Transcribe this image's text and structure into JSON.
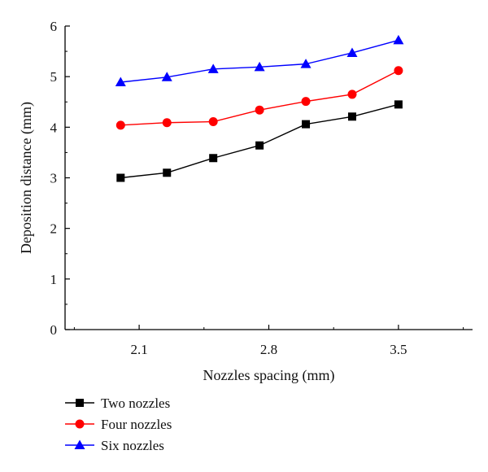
{
  "chart_data": {
    "type": "line",
    "xlabel": "Nozzles spacing (mm)",
    "ylabel": "Deposition distance (mm)",
    "xlim": [
      1.7,
      3.9
    ],
    "ylim": [
      0,
      6
    ],
    "xticks": [
      2.1,
      2.8,
      3.5
    ],
    "xtick_labels": [
      "2.1",
      "2.8",
      "3.5"
    ],
    "yticks": [
      0,
      1,
      2,
      3,
      4,
      5,
      6
    ],
    "ytick_labels": [
      "0",
      "1",
      "2",
      "3",
      "4",
      "5",
      "6"
    ],
    "x": [
      2.0,
      2.25,
      2.5,
      2.75,
      3.0,
      3.25,
      3.5
    ],
    "series": [
      {
        "name": "Two nozzles",
        "color": "#000000",
        "marker": "square",
        "values": [
          3.0,
          3.1,
          3.39,
          3.64,
          4.06,
          4.21,
          4.45
        ]
      },
      {
        "name": "Four nozzles",
        "color": "#ff0000",
        "marker": "circle",
        "values": [
          4.04,
          4.09,
          4.11,
          4.34,
          4.51,
          4.65,
          5.12
        ]
      },
      {
        "name": "Six nozzles",
        "color": "#0000ff",
        "marker": "triangle",
        "values": [
          4.89,
          4.99,
          5.15,
          5.19,
          5.25,
          5.47,
          5.72
        ]
      }
    ],
    "legend_position": "bottom-left",
    "grid": false
  }
}
